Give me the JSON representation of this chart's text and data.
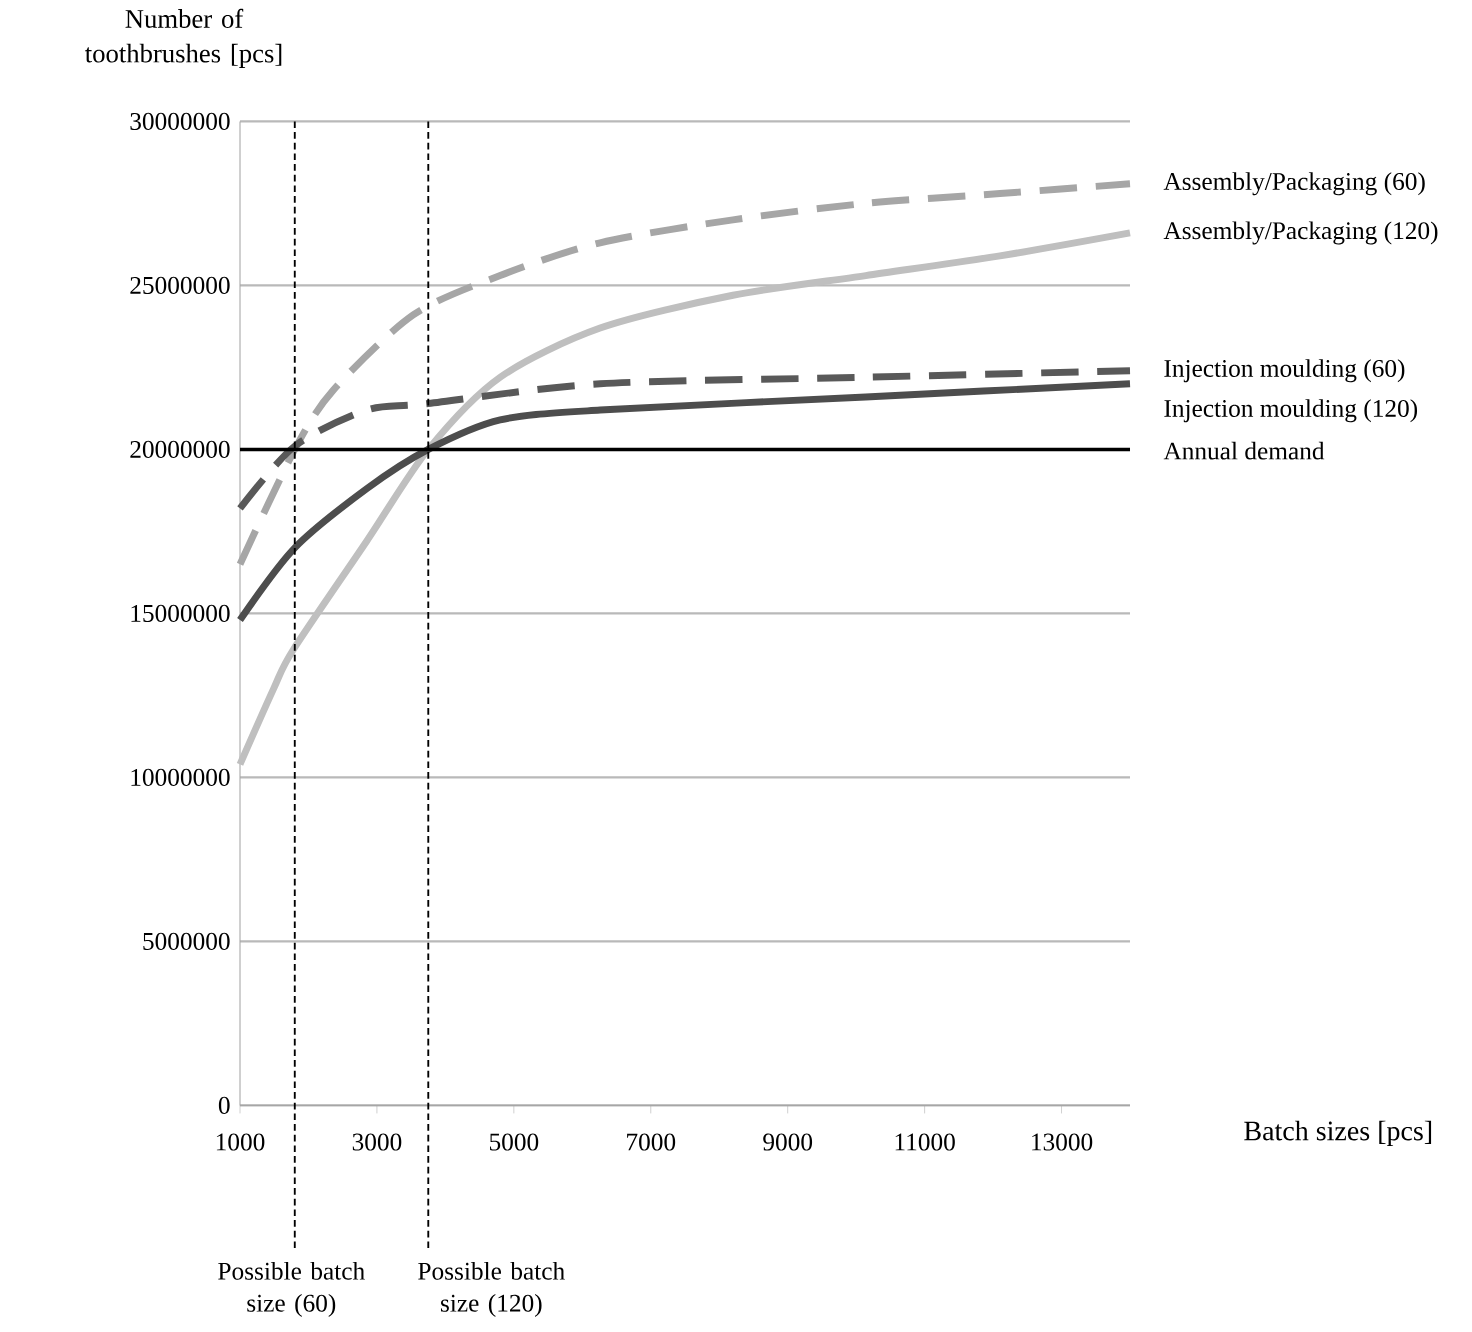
{
  "chart_data": {
    "type": "line",
    "xlabel": "Batch sizes [pcs]",
    "ylabel": "Number of toothbrushes [pcs]",
    "xlim": [
      1000,
      14000
    ],
    "xticks": [
      1000,
      3000,
      5000,
      7000,
      9000,
      11000,
      13000
    ],
    "ylim": [
      0,
      30000000
    ],
    "yticks": [
      0,
      5000000,
      10000000,
      15000000,
      20000000,
      25000000,
      30000000
    ],
    "grid": "y",
    "marker": "none",
    "series": [
      {
        "name": "Assembly/Packaging (60)",
        "color": "#a6a6a6",
        "line_style": "dashed",
        "x": [
          1000,
          1800,
          2360,
          3530,
          4800,
          6260,
          8200,
          10140,
          12100,
          14000
        ],
        "values": [
          16500000,
          20000000,
          21800000,
          24100000,
          25300000,
          26300000,
          27000000,
          27500000,
          27800000,
          28100000
        ]
      },
      {
        "name": "Assembly/Packaging (120)",
        "color": "#bfbfbf",
        "line_style": "solid",
        "x": [
          1000,
          1490,
          1780,
          2850,
          3750,
          4800,
          6260,
          8200,
          10140,
          12100,
          14000
        ],
        "values": [
          10400000,
          12700000,
          13900000,
          17200000,
          20000000,
          22200000,
          23700000,
          24700000,
          25300000,
          25900000,
          26600000
        ]
      },
      {
        "name": "Injection moulding (60)",
        "color": "#595959",
        "line_style": "dashed",
        "x": [
          1000,
          1800,
          2850,
          3750,
          6260,
          10140,
          14000
        ],
        "values": [
          18200000,
          20100000,
          21200000,
          21400000,
          22000000,
          22200000,
          22400000
        ]
      },
      {
        "name": "Injection moulding (120)",
        "color": "#4d4d4d",
        "line_style": "solid",
        "x": [
          1000,
          1800,
          2850,
          3750,
          4800,
          6260,
          10140,
          14000
        ],
        "values": [
          14800000,
          17000000,
          18800000,
          20000000,
          20900000,
          21200000,
          21600000,
          22000000
        ]
      }
    ],
    "ref_lines": [
      {
        "axis": "y",
        "value": 20000000,
        "label": "Annual demand",
        "color": "#000000",
        "line_style": "solid"
      },
      {
        "axis": "x",
        "value": 1800,
        "label": "Possible batch size (60)",
        "color": "#000000",
        "line_style": "dashed"
      },
      {
        "axis": "x",
        "value": 3750,
        "label": "Possible batch size (120)",
        "color": "#000000",
        "line_style": "dashed"
      }
    ]
  }
}
